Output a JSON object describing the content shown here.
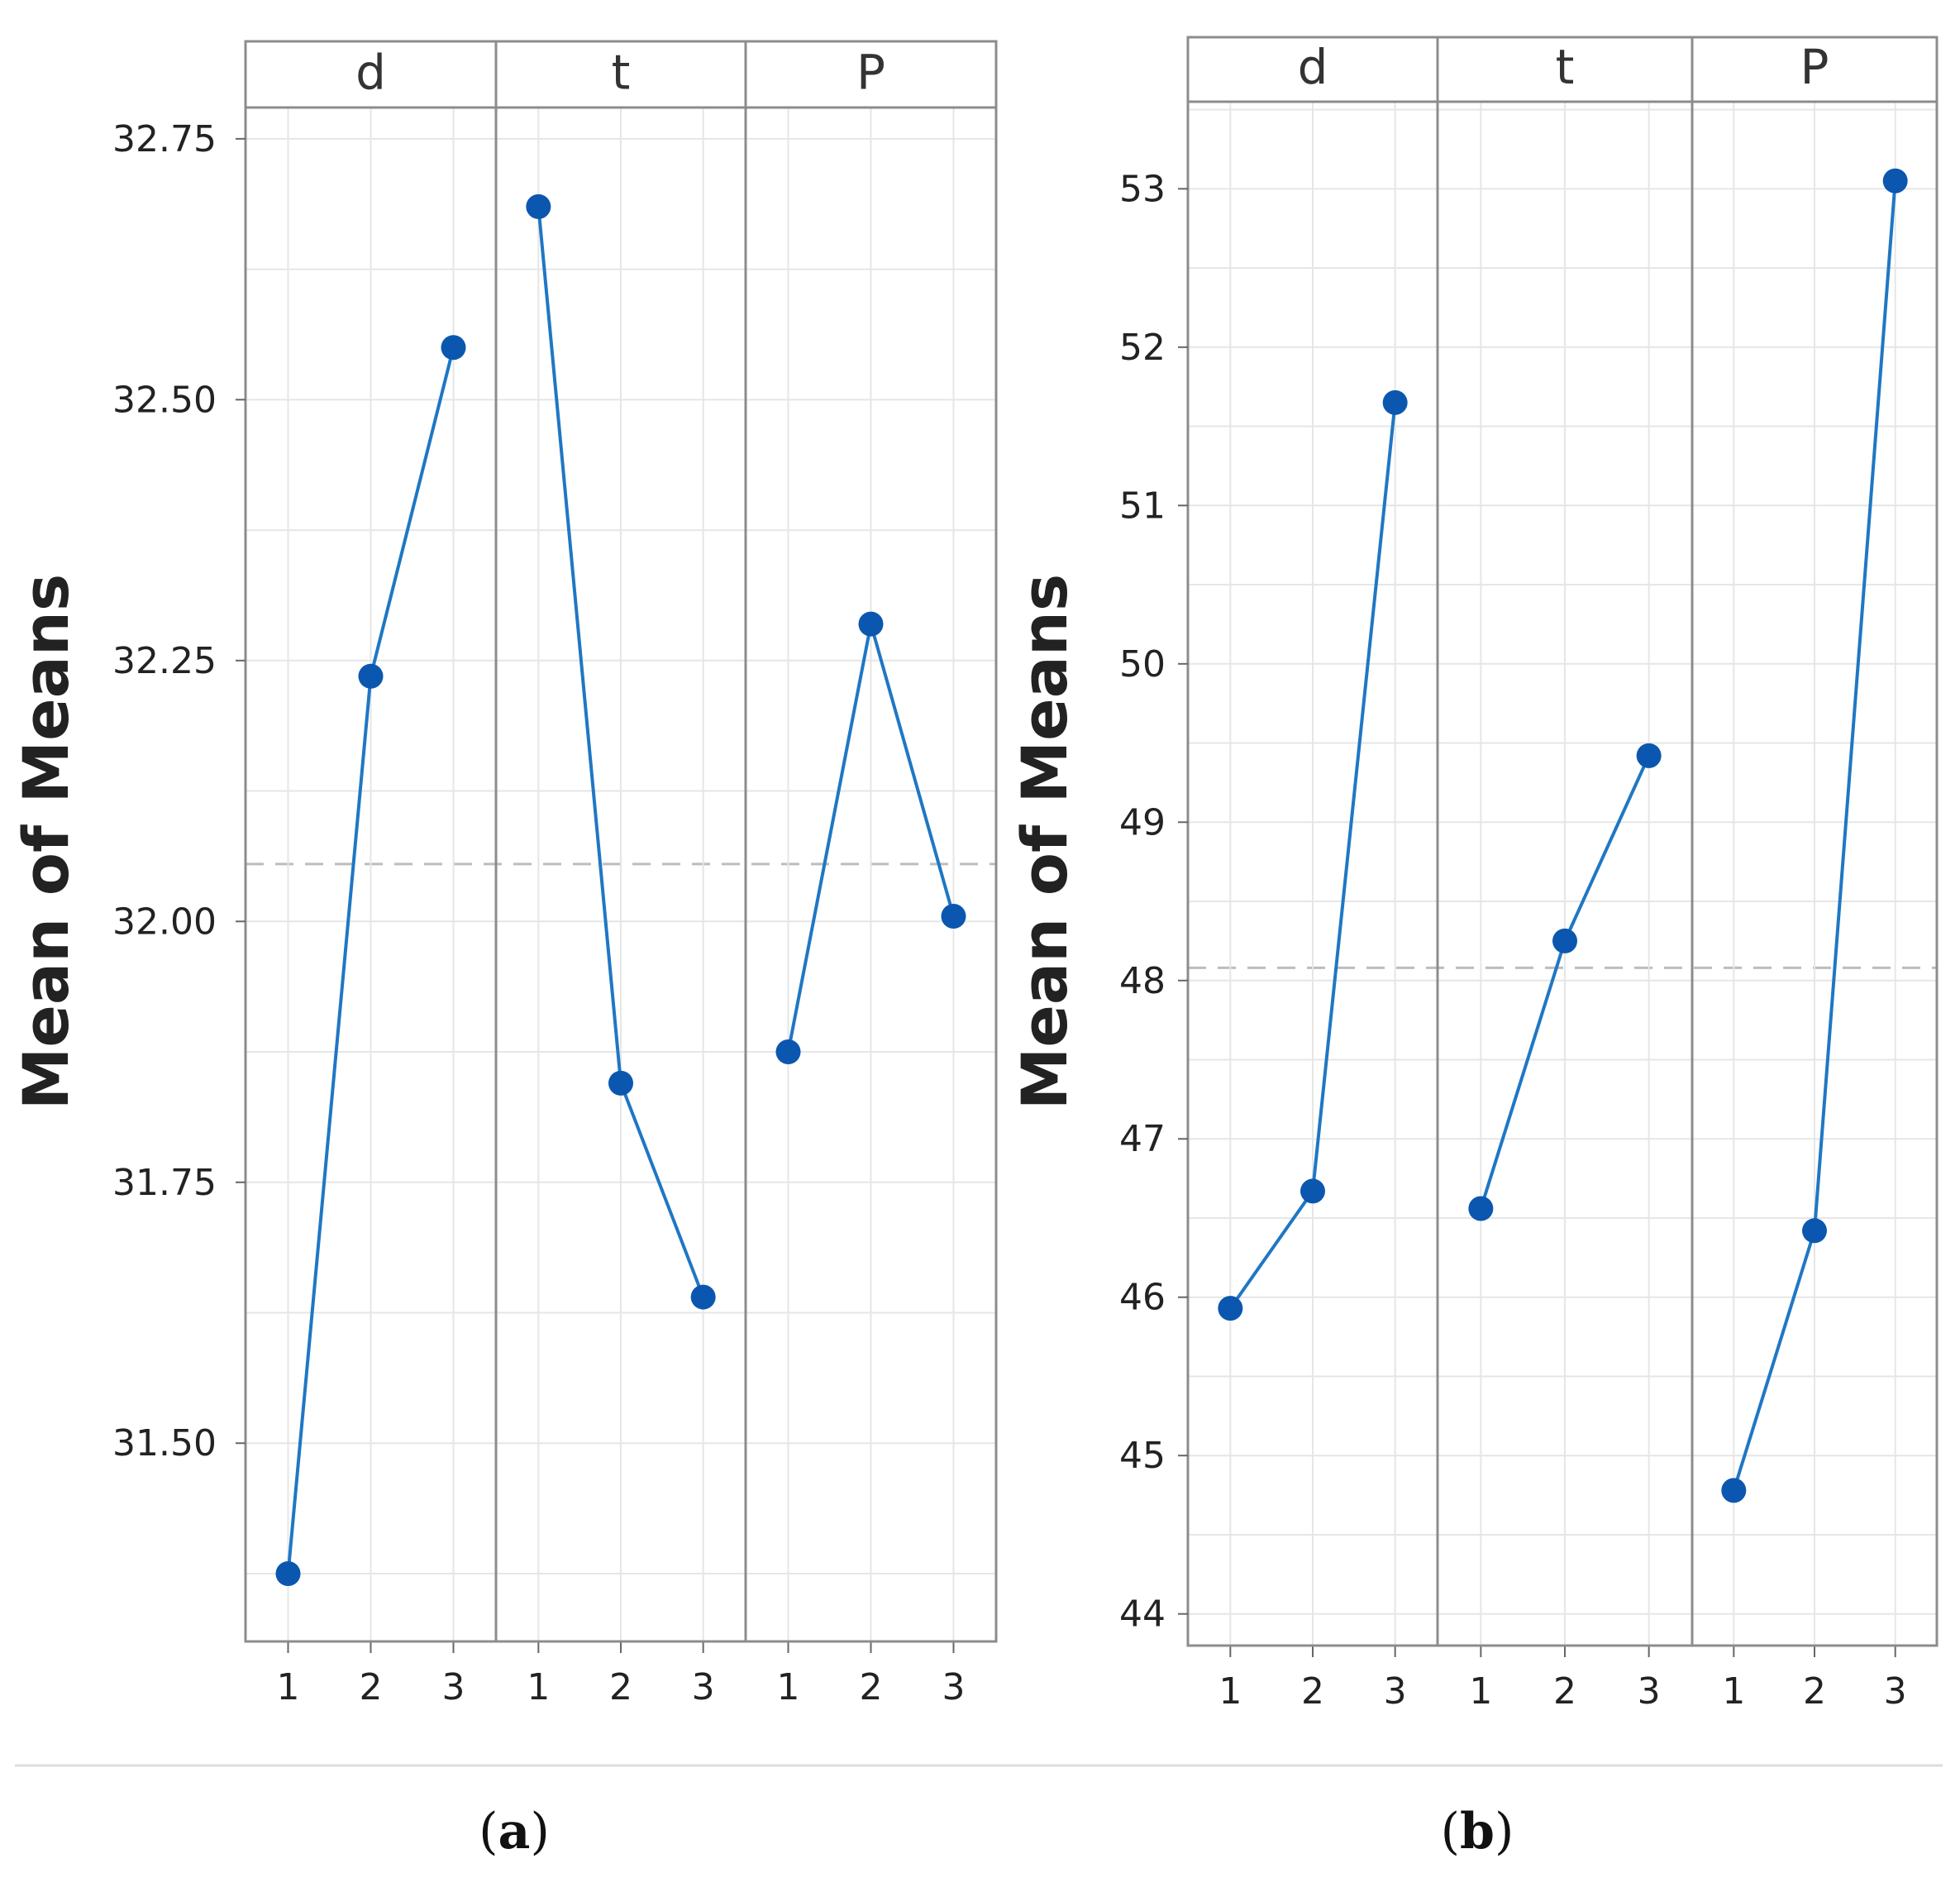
{
  "chart_data": [
    {
      "type": "line",
      "panel_label": "a",
      "ylabel": "Mean of Means",
      "ylim": [
        31.31,
        32.78
      ],
      "yticks": [
        "31.50",
        "31.75",
        "32.00",
        "32.25",
        "32.50",
        "32.75"
      ],
      "reference_mean": 32.055,
      "facets": [
        {
          "name": "d",
          "x": [
            "1",
            "2",
            "3"
          ],
          "values": [
            31.375,
            32.235,
            32.55
          ]
        },
        {
          "name": "t",
          "x": [
            "1",
            "2",
            "3"
          ],
          "values": [
            32.685,
            31.845,
            31.64
          ]
        },
        {
          "name": "P",
          "x": [
            "1",
            "2",
            "3"
          ],
          "values": [
            31.875,
            32.285,
            32.005
          ]
        }
      ],
      "grid": true,
      "line_color": "#1f77c4",
      "marker_color": "#0b57b0"
    },
    {
      "type": "line",
      "panel_label": "b",
      "ylabel": "Mean of Means",
      "ylim": [
        43.8,
        53.55
      ],
      "yticks": [
        "44",
        "45",
        "46",
        "47",
        "48",
        "49",
        "50",
        "51",
        "52",
        "53"
      ],
      "reference_mean": 48.08,
      "facets": [
        {
          "name": "d",
          "x": [
            "1",
            "2",
            "3"
          ],
          "values": [
            45.93,
            46.67,
            51.65
          ]
        },
        {
          "name": "t",
          "x": [
            "1",
            "2",
            "3"
          ],
          "values": [
            46.56,
            48.25,
            49.42
          ]
        },
        {
          "name": "P",
          "x": [
            "1",
            "2",
            "3"
          ],
          "values": [
            44.78,
            46.42,
            53.05
          ]
        }
      ],
      "grid": true,
      "line_color": "#1f77c4",
      "marker_color": "#0b57b0"
    }
  ]
}
